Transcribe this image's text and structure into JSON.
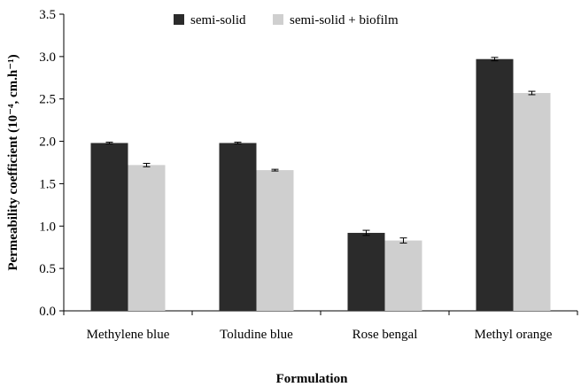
{
  "chart_data": {
    "type": "bar",
    "categories": [
      "Methylene blue",
      "Toludine blue",
      "Rose bengal",
      "Methyl orange"
    ],
    "series": [
      {
        "name": "semi-solid",
        "values": [
          1.98,
          1.98,
          0.92,
          2.97
        ],
        "errors": [
          0.01,
          0.01,
          0.03,
          0.02
        ],
        "color": "#2b2b2b"
      },
      {
        "name": "semi-solid + biofilm",
        "values": [
          1.72,
          1.66,
          0.83,
          2.57
        ],
        "errors": [
          0.02,
          0.01,
          0.03,
          0.02
        ],
        "color": "#cfcfcf"
      }
    ],
    "xlabel": "Formulation",
    "ylabel": "Permeability coefficient (10⁻⁴, cm.h⁻¹)",
    "ylim": [
      0,
      3.5
    ],
    "yticks": [
      "0.0",
      "0.5",
      "1.0",
      "1.5",
      "2.0",
      "2.5",
      "3.0",
      "3.5"
    ],
    "grid": false,
    "legend_position": "top"
  }
}
